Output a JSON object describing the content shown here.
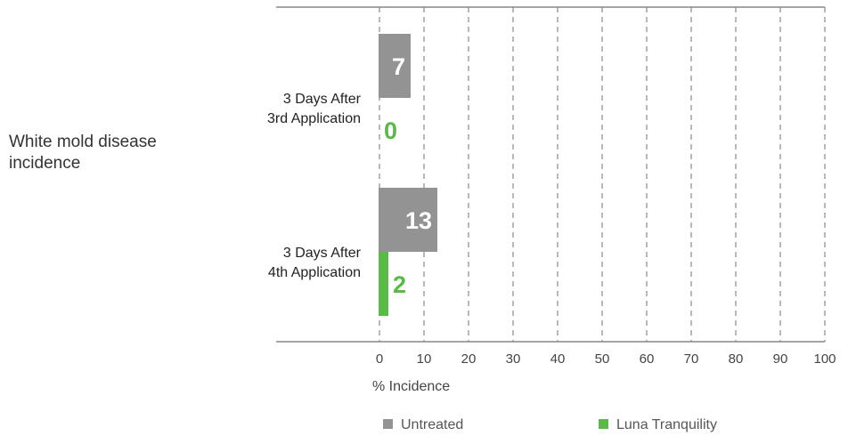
{
  "side_label": "White mold disease incidence",
  "chart_data": {
    "type": "bar",
    "orientation": "horizontal",
    "categories": [
      [
        "3 Days After",
        "3rd Application"
      ],
      [
        "3 Days After",
        "4th Application"
      ]
    ],
    "series": [
      {
        "name": "Untreated",
        "values": [
          7,
          13
        ],
        "color": "#939393",
        "label_color": "#ffffff"
      },
      {
        "name": "Luna Tranquility",
        "values": [
          0,
          2
        ],
        "color": "#5bb947",
        "label_color": "#5bb947"
      }
    ],
    "xlabel": "% Incidence",
    "xlim": [
      0,
      100
    ],
    "xticks": [
      0,
      10,
      20,
      30,
      40,
      50,
      60,
      70,
      80,
      90,
      100
    ],
    "grid": "vertical dashed",
    "legend_position": "bottom"
  }
}
